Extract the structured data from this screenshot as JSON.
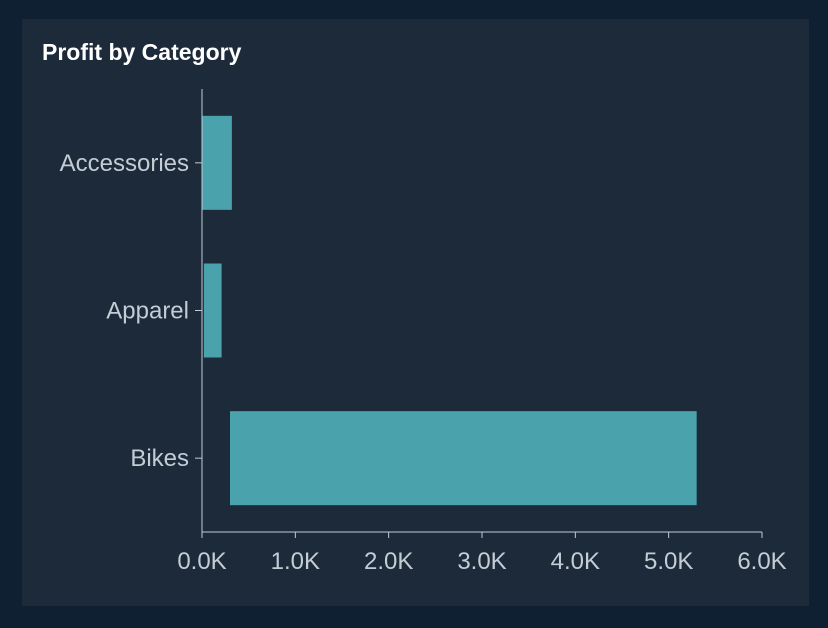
{
  "chart_data": {
    "type": "bar",
    "orientation": "horizontal",
    "title": "Profit by Category",
    "categories": [
      "Accessories",
      "Apparel",
      "Bikes"
    ],
    "series": [
      {
        "values": [
          320,
          190,
          5000
        ],
        "starts": [
          0,
          20,
          300
        ]
      }
    ],
    "xlim": [
      0,
      6000
    ],
    "x_ticks": [
      0,
      1000,
      2000,
      3000,
      4000,
      5000,
      6000
    ],
    "x_tick_labels": [
      "0.0K",
      "1.0K",
      "2.0K",
      "3.0K",
      "4.0K",
      "5.0K",
      "6.0K"
    ],
    "xlabel": "",
    "ylabel": "",
    "grid": false,
    "legend": "none"
  },
  "colors": {
    "background": "#0f2032",
    "panel": "#1c2a3a",
    "bar": "#4aa3ac",
    "axis": "#c4ccd4",
    "title": "#ffffff"
  }
}
